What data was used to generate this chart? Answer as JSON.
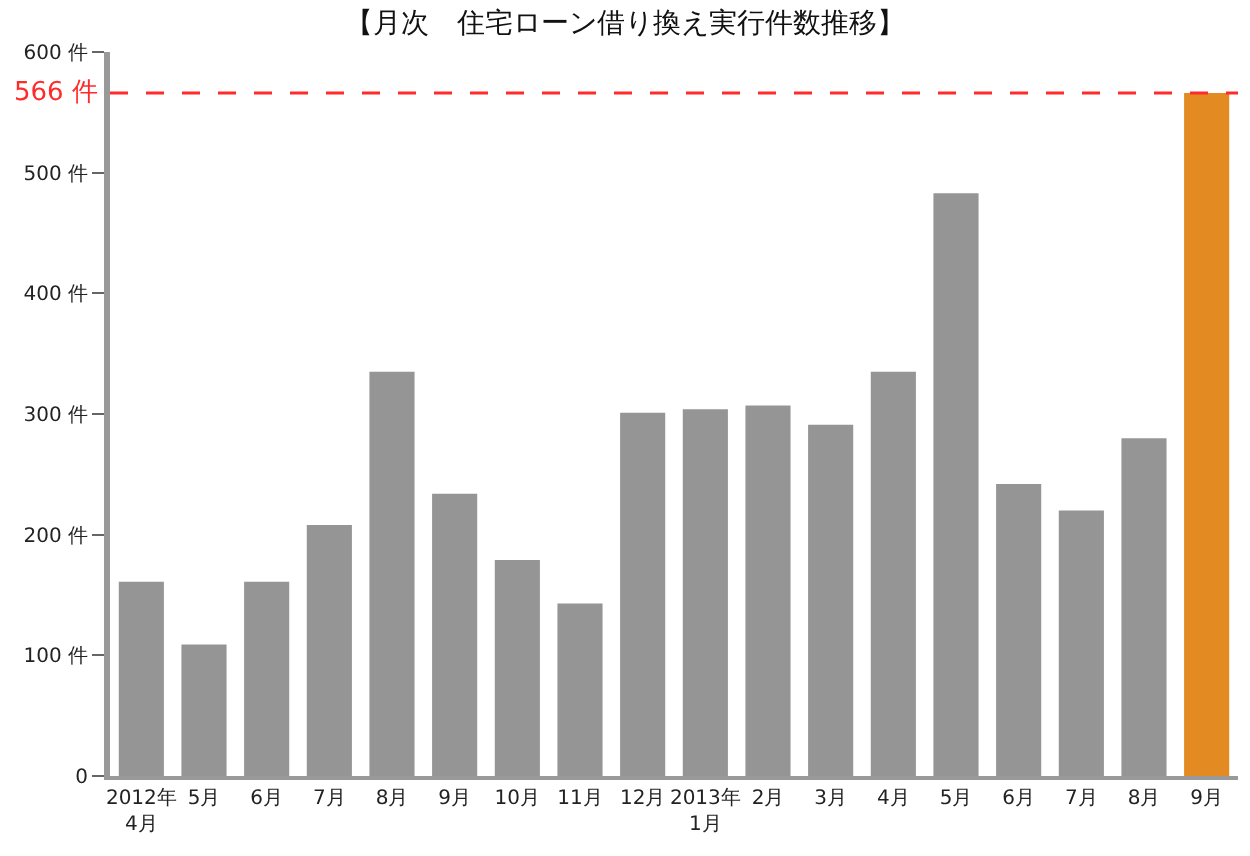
{
  "chart_data": {
    "type": "bar",
    "title": "【月次　住宅ローン借り換え実行件数推移】",
    "categories": [
      "2012年\n4月",
      "5月",
      "6月",
      "7月",
      "8月",
      "9月",
      "10月",
      "11月",
      "12月",
      "2013年\n1月",
      "2月",
      "3月",
      "4月",
      "5月",
      "6月",
      "7月",
      "8月",
      "9月"
    ],
    "values": [
      161,
      109,
      161,
      208,
      335,
      234,
      179,
      143,
      301,
      304,
      307,
      291,
      335,
      483,
      242,
      220,
      280,
      566
    ],
    "colors": [
      "#959595",
      "#959595",
      "#959595",
      "#959595",
      "#959595",
      "#959595",
      "#959595",
      "#959595",
      "#959595",
      "#959595",
      "#959595",
      "#959595",
      "#959595",
      "#959595",
      "#959595",
      "#959595",
      "#959595",
      "#e38b22"
    ],
    "ylim": [
      0,
      600
    ],
    "yticks": [
      0,
      {
        "value": 100,
        "label": "100 件"
      },
      {
        "value": 200,
        "label": "200 件"
      },
      {
        "value": 300,
        "label": "300 件"
      },
      {
        "value": 400,
        "label": "400 件"
      },
      {
        "value": 500,
        "label": "500 件"
      },
      {
        "value": 600,
        "label": "600 件"
      }
    ],
    "ref_lines": [
      {
        "axis": "y",
        "value": 566,
        "label": "566 件",
        "color": "#ff2a2a",
        "line_style": "dashed"
      }
    ],
    "grid": false
  }
}
